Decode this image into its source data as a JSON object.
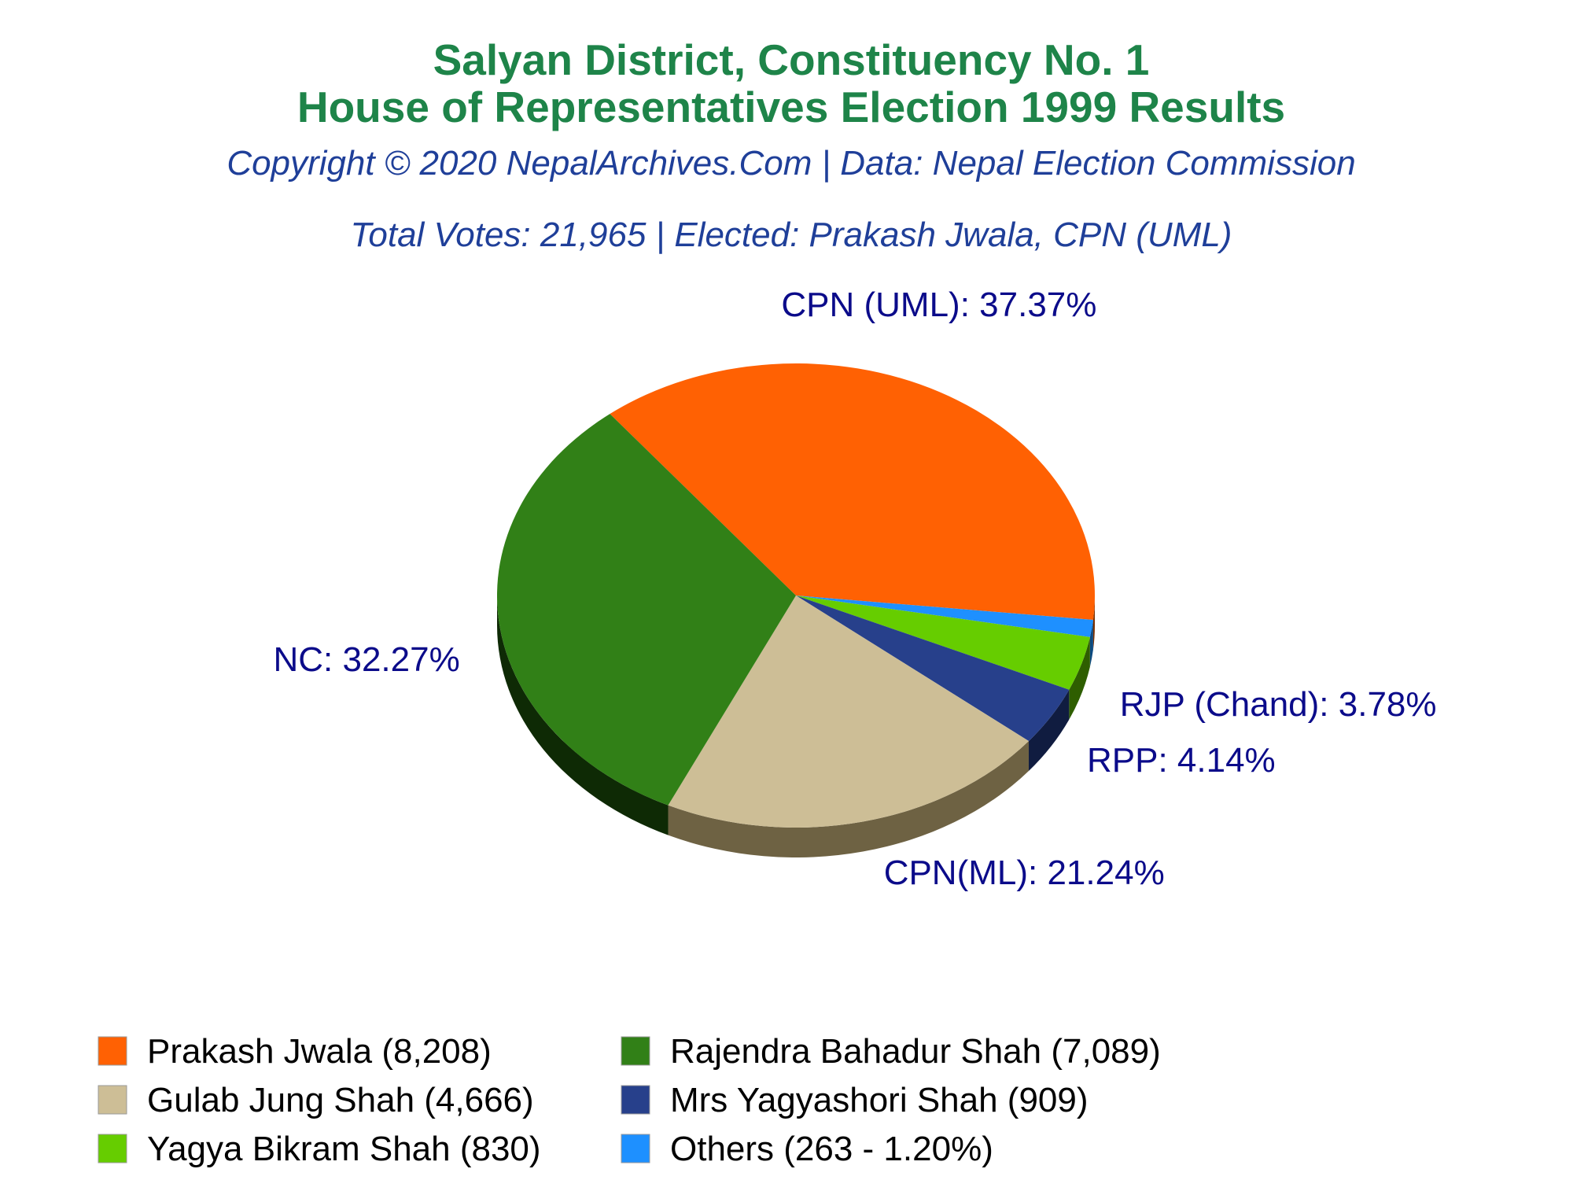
{
  "header": {
    "title_line1": "Salyan District, Constituency No. 1",
    "title_line2": "House of Representatives Election 1999 Results",
    "copyright": "Copyright © 2020 NepalArchives.Com | Data: Nepal Election Commission",
    "summary": "Total Votes: 21,965 | Elected: Prakash Jwala, CPN (UML)"
  },
  "colors": {
    "title": "#1e8449",
    "subtitle": "#1f3f99",
    "slice_label": "#0b0b8a",
    "legend_text": "#000000"
  },
  "chart_data": {
    "type": "pie",
    "style": "3d",
    "total_votes": 21965,
    "slices": [
      {
        "candidate": "Prakash Jwala",
        "party": "CPN (UML)",
        "votes": 8208,
        "percent": 37.37,
        "label": "CPN (UML): 37.37%",
        "legend": "Prakash Jwala (8,208)",
        "color": "#ff6103",
        "dark": "#7a2f00"
      },
      {
        "candidate": "Others",
        "party": "Others",
        "votes": 263,
        "percent": 1.2,
        "label": "",
        "legend": "Others (263 - 1.20%)",
        "color": "#1e90ff",
        "dark": "#0d4a80"
      },
      {
        "candidate": "Yagya Bikram Shah",
        "party": "RJP (Chand)",
        "votes": 830,
        "percent": 3.78,
        "label": "RJP (Chand): 3.78%",
        "legend": "Yagya Bikram Shah (830)",
        "color": "#66cd00",
        "dark": "#2e5e00"
      },
      {
        "candidate": "Mrs Yagyashori Shah",
        "party": "RPP",
        "votes": 909,
        "percent": 4.14,
        "label": "RPP: 4.14%",
        "legend": "Mrs Yagyashori Shah (909)",
        "color": "#27408b",
        "dark": "#101c40"
      },
      {
        "candidate": "Gulab Jung Shah",
        "party": "CPN(ML)",
        "votes": 4666,
        "percent": 21.24,
        "label": "CPN(ML): 21.24%",
        "legend": "Gulab Jung Shah (4,666)",
        "color": "#cdbe96",
        "dark": "#6e6243"
      },
      {
        "candidate": "Rajendra Bahadur Shah",
        "party": "NC",
        "votes": 7089,
        "percent": 32.27,
        "label": "NC: 32.27%",
        "legend": "Rajendra Bahadur Shah (7,089)",
        "color": "#318017",
        "dark": "#0e2a05"
      }
    ],
    "legend_order": [
      "Prakash Jwala (8,208)",
      "Rajendra Bahadur Shah (7,089)",
      "Gulab Jung Shah (4,666)",
      "Mrs Yagyashori Shah (909)",
      "Yagya Bikram Shah (830)",
      "Others (263 - 1.20%)"
    ]
  }
}
